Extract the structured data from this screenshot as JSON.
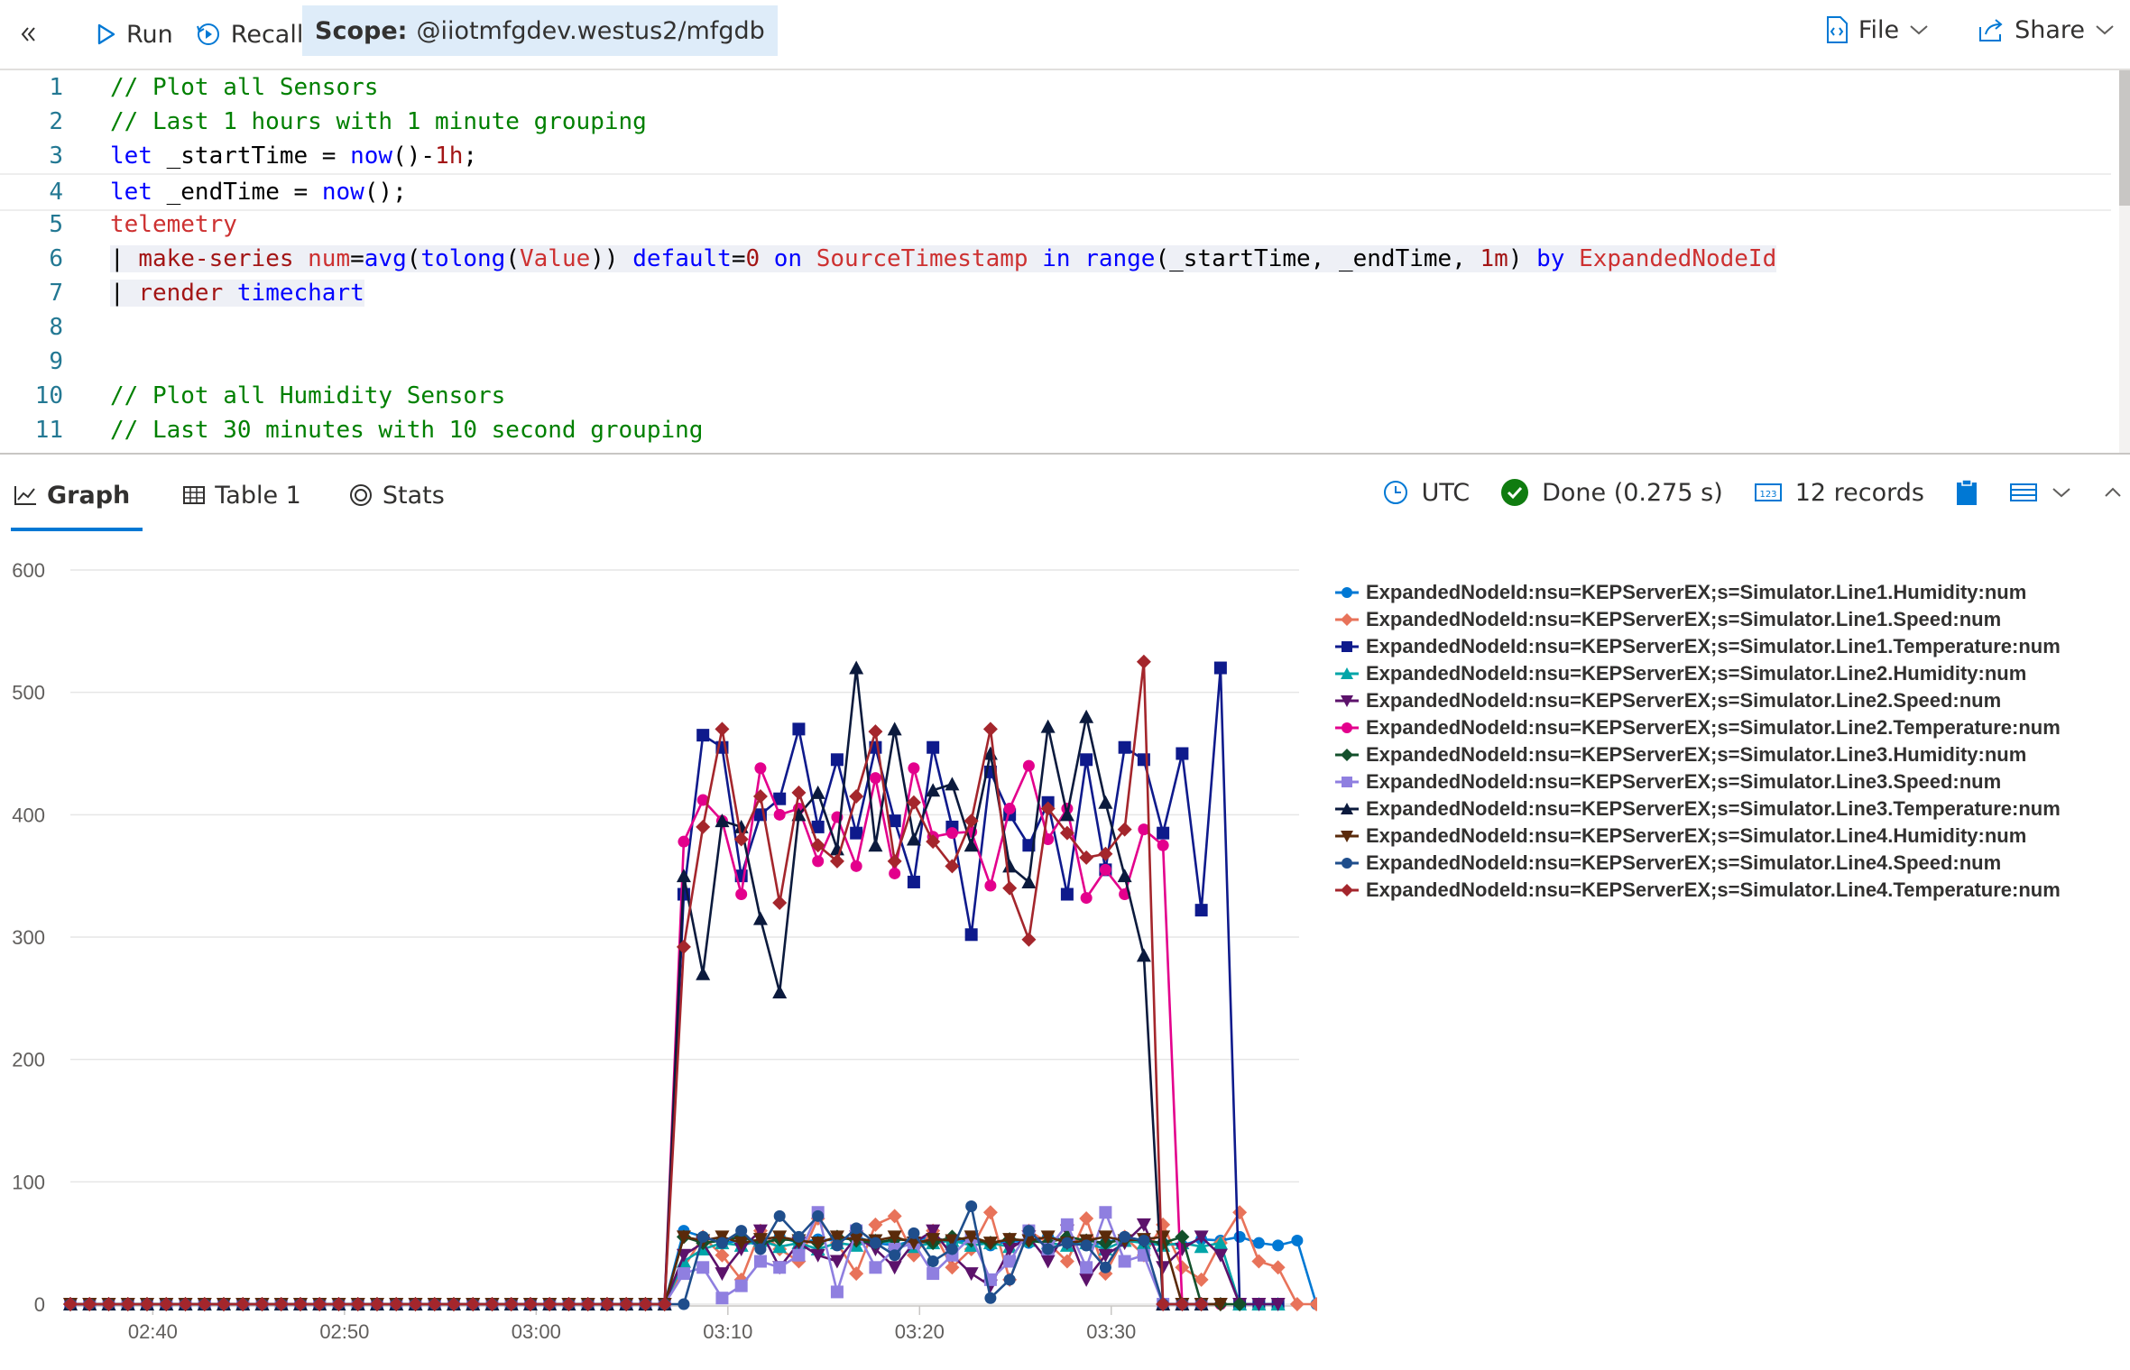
{
  "toolbar": {
    "collapse_icon": "double-chevron-left-icon",
    "run_label": "Run",
    "recall_label": "Recall",
    "scope_label": "Scope:",
    "scope_value": "@iiotmfgdev.westus2/mfgdb",
    "file_label": "File",
    "share_label": "Share"
  },
  "editor": {
    "lines": [
      {
        "n": "1",
        "tokens": [
          [
            "c-cm",
            "// Plot all Sensors"
          ]
        ]
      },
      {
        "n": "2",
        "tokens": [
          [
            "c-cm",
            "// Last 1 hours with 1 minute grouping"
          ]
        ]
      },
      {
        "n": "3",
        "tokens": [
          [
            "c-kw",
            "let"
          ],
          [
            "c-id",
            " _startTime = "
          ],
          [
            "c-kw",
            "now"
          ],
          [
            "c-id",
            "()-"
          ],
          [
            "c-tb",
            "1h"
          ],
          [
            "c-id",
            ";"
          ]
        ]
      },
      {
        "n": "4",
        "tokens": [
          [
            "c-kw",
            "let"
          ],
          [
            "c-id",
            " _endTime = "
          ],
          [
            "c-kw",
            "now"
          ],
          [
            "c-id",
            "();"
          ]
        ]
      },
      {
        "n": "5",
        "tokens": [
          [
            "c-col",
            "telemetry"
          ]
        ]
      },
      {
        "n": "6",
        "tokens": [
          [
            "c-id",
            "| "
          ],
          [
            "c-tb",
            "make-series"
          ],
          [
            "c-id",
            " "
          ],
          [
            "c-col",
            "num"
          ],
          [
            "c-id",
            "="
          ],
          [
            "c-kw",
            "avg"
          ],
          [
            "c-id",
            "("
          ],
          [
            "c-kw",
            "tolong"
          ],
          [
            "c-id",
            "("
          ],
          [
            "c-col",
            "Value"
          ],
          [
            "c-id",
            ")) "
          ],
          [
            "c-kw",
            "default"
          ],
          [
            "c-id",
            "="
          ],
          [
            "c-tb",
            "0"
          ],
          [
            "c-id",
            " "
          ],
          [
            "c-kw",
            "on"
          ],
          [
            "c-id",
            " "
          ],
          [
            "c-col",
            "SourceTimestamp"
          ],
          [
            "c-id",
            " "
          ],
          [
            "c-kw",
            "in"
          ],
          [
            "c-id",
            " "
          ],
          [
            "c-kw",
            "range"
          ],
          [
            "c-id",
            "(_startTime, _endTime, "
          ],
          [
            "c-tb",
            "1m"
          ],
          [
            "c-id",
            ") "
          ],
          [
            "c-kw",
            "by"
          ],
          [
            "c-id",
            " "
          ],
          [
            "c-col",
            "ExpandedNodeId"
          ]
        ]
      },
      {
        "n": "7",
        "tokens": [
          [
            "c-id",
            "| "
          ],
          [
            "c-tb",
            "render"
          ],
          [
            "c-id",
            " "
          ],
          [
            "c-kw",
            "timechart"
          ]
        ]
      },
      {
        "n": "8",
        "tokens": []
      },
      {
        "n": "9",
        "tokens": []
      },
      {
        "n": "10",
        "tokens": [
          [
            "c-cm",
            "// Plot all Humidity Sensors"
          ]
        ]
      },
      {
        "n": "11",
        "tokens": [
          [
            "c-cm",
            "// Last 30 minutes with 10 second grouping"
          ]
        ]
      }
    ]
  },
  "results": {
    "tabs": [
      {
        "label": "Graph",
        "icon": "line-chart-icon",
        "active": true
      },
      {
        "label": "Table 1",
        "icon": "table-icon",
        "active": false
      },
      {
        "label": "Stats",
        "icon": "stats-icon",
        "active": false
      }
    ],
    "timezone": "UTC",
    "status": "Done (0.275 s)",
    "records": "12 records"
  },
  "chart_data": {
    "type": "line",
    "ylim": [
      0,
      600
    ],
    "yticks": [
      0,
      100,
      200,
      300,
      400,
      500,
      600
    ],
    "ytick_labels": [
      "0",
      "100",
      "200",
      "300",
      "400",
      "500",
      "600"
    ],
    "xtick_labels": [
      "02:40",
      "02:50",
      "03:00",
      "03:10",
      "03:20",
      "03:30"
    ],
    "xtick_minutes": [
      155,
      165,
      175,
      185,
      195,
      205
    ],
    "x_start_minute": 150.7,
    "x_step_minutes": 1,
    "grid": true,
    "legend_position": "right",
    "series": [
      {
        "name": "ExpandedNodeId:nsu=KEPServerEX;s=Simulator.Line1.Humidity:num",
        "color": "#0078d4",
        "marker": "circle",
        "values": [
          0,
          0,
          0,
          0,
          0,
          0,
          0,
          0,
          0,
          0,
          0,
          0,
          0,
          0,
          0,
          0,
          0,
          0,
          0,
          0,
          0,
          0,
          0,
          0,
          0,
          0,
          0,
          0,
          0,
          0,
          0,
          0,
          60,
          55,
          50,
          52,
          48,
          55,
          50,
          53,
          52,
          55,
          50,
          48,
          52,
          55,
          50,
          53,
          48,
          52,
          50,
          55,
          52,
          48,
          50,
          55,
          52,
          50,
          48,
          53,
          52,
          55,
          50,
          48,
          52,
          0,
          0,
          0
        ]
      },
      {
        "name": "ExpandedNodeId:nsu=KEPServerEX;s=Simulator.Line1.Speed:num",
        "color": "#e8735a",
        "marker": "diamond",
        "values": [
          0,
          0,
          0,
          0,
          0,
          0,
          0,
          0,
          0,
          0,
          0,
          0,
          0,
          0,
          0,
          0,
          0,
          0,
          0,
          0,
          0,
          0,
          0,
          0,
          0,
          0,
          0,
          0,
          0,
          0,
          0,
          0,
          30,
          55,
          40,
          20,
          60,
          45,
          35,
          70,
          50,
          25,
          65,
          72,
          40,
          60,
          30,
          45,
          75,
          20,
          60,
          50,
          35,
          70,
          25,
          55,
          40,
          65,
          30,
          20,
          50,
          75,
          35,
          30,
          0,
          0,
          0
        ]
      },
      {
        "name": "ExpandedNodeId:nsu=KEPServerEX;s=Simulator.Line1.Temperature:num",
        "color": "#0e1a8c",
        "marker": "square",
        "values": [
          0,
          0,
          0,
          0,
          0,
          0,
          0,
          0,
          0,
          0,
          0,
          0,
          0,
          0,
          0,
          0,
          0,
          0,
          0,
          0,
          0,
          0,
          0,
          0,
          0,
          0,
          0,
          0,
          0,
          0,
          0,
          0,
          335,
          465,
          455,
          350,
          400,
          413,
          470,
          390,
          445,
          385,
          455,
          395,
          345,
          455,
          390,
          302,
          435,
          400,
          375,
          410,
          335,
          445,
          355,
          455,
          445,
          385,
          450,
          322,
          520,
          0,
          0,
          0
        ]
      },
      {
        "name": "ExpandedNodeId:nsu=KEPServerEX;s=Simulator.Line2.Humidity:num",
        "color": "#00a5a8",
        "marker": "triangle",
        "values": [
          0,
          0,
          0,
          0,
          0,
          0,
          0,
          0,
          0,
          0,
          0,
          0,
          0,
          0,
          0,
          0,
          0,
          0,
          0,
          0,
          0,
          0,
          0,
          0,
          0,
          0,
          0,
          0,
          0,
          0,
          0,
          0,
          35,
          45,
          50,
          48,
          52,
          47,
          50,
          45,
          50,
          48,
          52,
          50,
          47,
          50,
          52,
          48,
          50,
          47,
          52,
          50,
          48,
          50,
          45,
          52,
          50,
          48,
          50,
          47,
          50,
          0,
          0,
          0
        ]
      },
      {
        "name": "ExpandedNodeId:nsu=KEPServerEX;s=Simulator.Line2.Speed:num",
        "color": "#5c126b",
        "marker": "triangle-down",
        "values": [
          0,
          0,
          0,
          0,
          0,
          0,
          0,
          0,
          0,
          0,
          0,
          0,
          0,
          0,
          0,
          0,
          0,
          0,
          0,
          0,
          0,
          0,
          0,
          0,
          0,
          0,
          0,
          0,
          0,
          0,
          0,
          0,
          40,
          50,
          25,
          45,
          60,
          30,
          50,
          40,
          35,
          55,
          45,
          30,
          50,
          60,
          40,
          25,
          15,
          45,
          55,
          35,
          60,
          20,
          40,
          50,
          65,
          30,
          45,
          55,
          40,
          0,
          0,
          0
        ]
      },
      {
        "name": "ExpandedNodeId:nsu=KEPServerEX;s=Simulator.Line2.Temperature:num",
        "color": "#e3008c",
        "marker": "circle",
        "values": [
          0,
          0,
          0,
          0,
          0,
          0,
          0,
          0,
          0,
          0,
          0,
          0,
          0,
          0,
          0,
          0,
          0,
          0,
          0,
          0,
          0,
          0,
          0,
          0,
          0,
          0,
          0,
          0,
          0,
          0,
          0,
          0,
          378,
          412,
          395,
          335,
          438,
          400,
          405,
          362,
          398,
          358,
          430,
          352,
          438,
          382,
          385,
          386,
          342,
          405,
          440,
          380,
          405,
          332,
          355,
          335,
          388,
          375,
          0,
          0,
          0
        ]
      },
      {
        "name": "ExpandedNodeId:nsu=KEPServerEX;s=Simulator.Line3.Humidity:num",
        "color": "#13502b",
        "marker": "diamond",
        "values": [
          0,
          0,
          0,
          0,
          0,
          0,
          0,
          0,
          0,
          0,
          0,
          0,
          0,
          0,
          0,
          0,
          0,
          0,
          0,
          0,
          0,
          0,
          0,
          0,
          0,
          0,
          0,
          0,
          0,
          0,
          0,
          0,
          55,
          50,
          52,
          55,
          50,
          53,
          52,
          50,
          55,
          52,
          50,
          53,
          52,
          50,
          55,
          52,
          50,
          53,
          52,
          50,
          55,
          52,
          50,
          53,
          52,
          50,
          55,
          0,
          0,
          0
        ]
      },
      {
        "name": "ExpandedNodeId:nsu=KEPServerEX;s=Simulator.Line3.Speed:num",
        "color": "#8f7fe0",
        "marker": "square",
        "values": [
          0,
          0,
          0,
          0,
          0,
          0,
          0,
          0,
          0,
          0,
          0,
          0,
          0,
          0,
          0,
          0,
          0,
          0,
          0,
          0,
          0,
          0,
          0,
          0,
          0,
          0,
          0,
          0,
          0,
          0,
          0,
          0,
          25,
          30,
          5,
          15,
          35,
          30,
          40,
          75,
          10,
          60,
          30,
          45,
          50,
          25,
          40,
          55,
          20,
          35,
          60,
          45,
          65,
          30,
          75,
          35,
          40,
          0,
          0,
          0
        ]
      },
      {
        "name": "ExpandedNodeId:nsu=KEPServerEX;s=Simulator.Line3.Temperature:num",
        "color": "#0b1a3d",
        "marker": "triangle",
        "values": [
          0,
          0,
          0,
          0,
          0,
          0,
          0,
          0,
          0,
          0,
          0,
          0,
          0,
          0,
          0,
          0,
          0,
          0,
          0,
          0,
          0,
          0,
          0,
          0,
          0,
          0,
          0,
          0,
          0,
          0,
          0,
          0,
          350,
          270,
          395,
          390,
          315,
          255,
          400,
          418,
          372,
          520,
          375,
          470,
          380,
          420,
          425,
          375,
          450,
          358,
          345,
          472,
          400,
          480,
          410,
          350,
          285,
          0,
          0,
          0
        ]
      },
      {
        "name": "ExpandedNodeId:nsu=KEPServerEX;s=Simulator.Line4.Humidity:num",
        "color": "#5a2a0a",
        "marker": "triangle-down",
        "values": [
          0,
          0,
          0,
          0,
          0,
          0,
          0,
          0,
          0,
          0,
          0,
          0,
          0,
          0,
          0,
          0,
          0,
          0,
          0,
          0,
          0,
          0,
          0,
          0,
          0,
          0,
          0,
          0,
          0,
          0,
          0,
          0,
          55,
          52,
          55,
          50,
          53,
          55,
          52,
          50,
          55,
          53,
          52,
          55,
          50,
          53,
          52,
          55,
          50,
          53,
          52,
          55,
          50,
          52,
          55,
          52,
          53,
          55,
          0,
          0,
          0
        ]
      },
      {
        "name": "ExpandedNodeId:nsu=KEPServerEX;s=Simulator.Line4.Speed:num",
        "color": "#1f4e8c",
        "marker": "circle",
        "values": [
          0,
          0,
          0,
          0,
          0,
          0,
          0,
          0,
          0,
          0,
          0,
          0,
          0,
          0,
          0,
          0,
          0,
          0,
          0,
          0,
          0,
          0,
          0,
          0,
          0,
          0,
          0,
          0,
          0,
          0,
          0,
          0,
          0,
          55,
          50,
          60,
          45,
          72,
          55,
          72,
          48,
          62,
          50,
          40,
          58,
          35,
          45,
          80,
          5,
          20,
          60,
          45,
          50,
          48,
          30,
          55,
          52,
          0,
          0,
          0
        ]
      },
      {
        "name": "ExpandedNodeId:nsu=KEPServerEX;s=Simulator.Line4.Temperature:num",
        "color": "#a4262c",
        "marker": "diamond",
        "values": [
          0,
          0,
          0,
          0,
          0,
          0,
          0,
          0,
          0,
          0,
          0,
          0,
          0,
          0,
          0,
          0,
          0,
          0,
          0,
          0,
          0,
          0,
          0,
          0,
          0,
          0,
          0,
          0,
          0,
          0,
          0,
          0,
          292,
          390,
          470,
          380,
          415,
          328,
          418,
          375,
          362,
          415,
          468,
          362,
          410,
          378,
          358,
          395,
          470,
          340,
          298,
          405,
          385,
          365,
          368,
          388,
          525,
          0,
          0,
          0
        ]
      }
    ]
  }
}
